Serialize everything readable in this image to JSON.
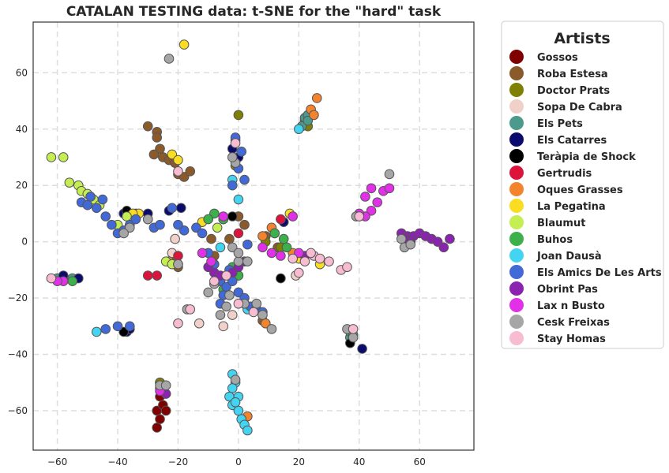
{
  "chart_data": {
    "type": "scatter",
    "title": "CATALAN TESTING data: t-SNE for the \"hard\" task",
    "xlabel": "",
    "ylabel": "",
    "xlim": [
      -68,
      78
    ],
    "ylim": [
      -74,
      78
    ],
    "xticks": [
      -60,
      -40,
      -20,
      0,
      20,
      40,
      60
    ],
    "yticks": [
      -60,
      -40,
      -20,
      0,
      20,
      40,
      60
    ],
    "grid": true,
    "legend": {
      "title": "Artists",
      "placement": "outside-right"
    },
    "series": [
      {
        "name": "Gossos",
        "color": "#800000",
        "points": [
          [
            -26,
            -55
          ],
          [
            -27,
            -60
          ],
          [
            -25,
            -58
          ],
          [
            -26,
            -63
          ],
          [
            -27,
            -66
          ],
          [
            -24,
            -60
          ],
          [
            -26,
            -50
          ],
          [
            -25,
            -52
          ]
        ]
      },
      {
        "name": "Roba Estesa",
        "color": "#8b5a2b",
        "points": [
          [
            -30,
            41
          ],
          [
            -27,
            39
          ],
          [
            -27,
            37
          ],
          [
            -26,
            33
          ],
          [
            -28,
            31
          ],
          [
            -25,
            30
          ],
          [
            -23,
            29
          ],
          [
            -21,
            28
          ],
          [
            -20,
            24
          ],
          [
            -18,
            23
          ],
          [
            -16,
            25
          ],
          [
            -9,
            1
          ],
          [
            -20,
            -9
          ],
          [
            -22,
            -7
          ],
          [
            -3,
            1
          ],
          [
            0,
            9
          ],
          [
            2,
            6
          ],
          [
            8,
            -28
          ],
          [
            9,
            2
          ],
          [
            13,
            -2
          ],
          [
            -8,
            -5
          ]
        ]
      },
      {
        "name": "Doctor Prats",
        "color": "#808000",
        "points": [
          [
            0,
            45
          ],
          [
            -1,
            27
          ],
          [
            22,
            43
          ],
          [
            23,
            41
          ],
          [
            9,
            0
          ],
          [
            14,
            -2
          ],
          [
            -26,
            -50
          ]
        ]
      },
      {
        "name": "Sopa De Cabra",
        "color": "#f0d0c8",
        "points": [
          [
            -21,
            1
          ],
          [
            -22,
            -4
          ],
          [
            -1,
            36
          ],
          [
            -2,
            -26
          ],
          [
            -13,
            -29
          ],
          [
            19,
            -12
          ],
          [
            -5,
            -30
          ]
        ]
      },
      {
        "name": "Els Pets",
        "color": "#4b9a8c",
        "points": [
          [
            -30,
            8
          ],
          [
            22,
            44
          ],
          [
            23,
            45
          ],
          [
            21,
            41
          ],
          [
            23,
            43
          ],
          [
            -60,
            -13
          ],
          [
            -55,
            -13
          ],
          [
            37,
            -34
          ]
        ]
      },
      {
        "name": "Els Catarres",
        "color": "#0b0b6e",
        "points": [
          [
            -58,
            -12
          ],
          [
            -53,
            -13
          ],
          [
            -38,
            10
          ],
          [
            -37,
            -32
          ],
          [
            -36,
            -31
          ],
          [
            -23,
            11
          ],
          [
            -19,
            12
          ],
          [
            -2,
            33
          ],
          [
            0,
            30
          ],
          [
            41,
            -38
          ],
          [
            15,
            7
          ],
          [
            -30,
            10
          ]
        ]
      },
      {
        "name": "Teràpia de Shock",
        "color": "#000000",
        "points": [
          [
            -37,
            11
          ],
          [
            -34,
            10
          ],
          [
            -38,
            -32
          ],
          [
            14,
            -13
          ],
          [
            -2,
            9
          ],
          [
            37,
            -36
          ]
        ]
      },
      {
        "name": "Gertrudis",
        "color": "#dc143c",
        "points": [
          [
            -30,
            -12
          ],
          [
            -27,
            -12
          ],
          [
            -20,
            -5
          ],
          [
            0,
            3
          ],
          [
            14,
            8
          ]
        ]
      },
      {
        "name": "Oques Grasses",
        "color": "#f4832e",
        "points": [
          [
            26,
            51
          ],
          [
            24,
            47
          ],
          [
            25,
            45
          ],
          [
            11,
            5
          ],
          [
            12,
            3
          ],
          [
            9,
            -29
          ],
          [
            3,
            -62
          ],
          [
            -23,
            -7
          ],
          [
            8,
            2
          ],
          [
            18,
            -4
          ]
        ]
      },
      {
        "name": "La Pegatina",
        "color": "#fadd20",
        "points": [
          [
            -18,
            70
          ],
          [
            -22,
            31
          ],
          [
            -20,
            29
          ],
          [
            17,
            10
          ],
          [
            -33,
            10
          ],
          [
            -35,
            10
          ],
          [
            -12,
            7
          ],
          [
            20,
            -6
          ],
          [
            27,
            -8
          ]
        ]
      },
      {
        "name": "Blaumut",
        "color": "#c4ee52",
        "points": [
          [
            -62,
            30
          ],
          [
            -58,
            30
          ],
          [
            -56,
            21
          ],
          [
            -53,
            20
          ],
          [
            -52,
            18
          ],
          [
            -50,
            17
          ],
          [
            -48,
            15
          ],
          [
            -40,
            6
          ],
          [
            -37,
            9
          ],
          [
            -24,
            -7
          ],
          [
            -22,
            -8
          ],
          [
            -7,
            5
          ],
          [
            -5,
            8
          ],
          [
            -46,
            13
          ]
        ]
      },
      {
        "name": "Buhos",
        "color": "#3cb04a",
        "points": [
          [
            -8,
            10
          ],
          [
            -5,
            8
          ],
          [
            -10,
            8
          ],
          [
            12,
            3
          ],
          [
            15,
            1
          ],
          [
            16,
            -2
          ],
          [
            -2,
            -9
          ],
          [
            0,
            -12
          ],
          [
            37,
            -32
          ],
          [
            38,
            -33
          ],
          [
            -55,
            -14
          ],
          [
            -5,
            -17
          ]
        ]
      },
      {
        "name": "Joan Dausà",
        "color": "#43d4f2",
        "points": [
          [
            -2,
            -47
          ],
          [
            -1,
            -50
          ],
          [
            -2,
            -52
          ],
          [
            -3,
            -55
          ],
          [
            -2,
            -58
          ],
          [
            0,
            -60
          ],
          [
            1,
            -63
          ],
          [
            2,
            -65
          ],
          [
            3,
            -67
          ],
          [
            0,
            -55
          ],
          [
            -1,
            -57
          ],
          [
            -47,
            -32
          ],
          [
            3,
            -24
          ],
          [
            -2,
            22
          ],
          [
            20,
            40
          ],
          [
            0,
            15
          ],
          [
            -6,
            -2
          ]
        ]
      },
      {
        "name": "Els Amics De Les Arts",
        "color": "#4169d8",
        "points": [
          [
            -52,
            14
          ],
          [
            -50,
            13
          ],
          [
            -45,
            15
          ],
          [
            -44,
            9
          ],
          [
            -42,
            6
          ],
          [
            -40,
            3
          ],
          [
            -38,
            4
          ],
          [
            -36,
            6
          ],
          [
            -34,
            8
          ],
          [
            -28,
            5
          ],
          [
            -26,
            6
          ],
          [
            -18,
            4
          ],
          [
            -14,
            5
          ],
          [
            -12,
            3
          ],
          [
            -10,
            -4
          ],
          [
            -8,
            -8
          ],
          [
            -6,
            -14
          ],
          [
            -5,
            -19
          ],
          [
            -6,
            -22
          ],
          [
            -4,
            -16
          ],
          [
            -2,
            -14
          ],
          [
            0,
            -18
          ],
          [
            2,
            -20
          ],
          [
            4,
            -23
          ],
          [
            6,
            -24
          ],
          [
            8,
            -25
          ],
          [
            -44,
            -31
          ],
          [
            -40,
            -30
          ],
          [
            -36,
            -30
          ],
          [
            0,
            26
          ],
          [
            2,
            22
          ],
          [
            -2,
            20
          ],
          [
            -1,
            37
          ],
          [
            1,
            32
          ],
          [
            -22,
            12
          ],
          [
            -20,
            6
          ],
          [
            -3,
            -10
          ],
          [
            3,
            -1
          ],
          [
            -47,
            12
          ],
          [
            -49,
            16
          ]
        ]
      },
      {
        "name": "Obrint Pas",
        "color": "#8b22b0",
        "points": [
          [
            54,
            3
          ],
          [
            56,
            2
          ],
          [
            58,
            2
          ],
          [
            60,
            3
          ],
          [
            62,
            2
          ],
          [
            64,
            1
          ],
          [
            66,
            0
          ],
          [
            68,
            -2
          ],
          [
            70,
            1
          ],
          [
            57,
            0
          ],
          [
            55,
            1
          ],
          [
            -8,
            -11
          ],
          [
            -6,
            -12
          ],
          [
            -10,
            -9
          ],
          [
            -26,
            -52
          ],
          [
            -24,
            -54
          ],
          [
            0,
            -9
          ],
          [
            -2,
            -11
          ],
          [
            2,
            -7
          ],
          [
            22,
            -5
          ]
        ]
      },
      {
        "name": "Lax n Busto",
        "color": "#e22fe8",
        "points": [
          [
            42,
            16
          ],
          [
            44,
            19
          ],
          [
            46,
            14
          ],
          [
            48,
            18
          ],
          [
            50,
            19
          ],
          [
            44,
            11
          ],
          [
            42,
            9
          ],
          [
            40,
            10
          ],
          [
            -12,
            -4
          ],
          [
            -9,
            -7
          ],
          [
            18,
            9
          ],
          [
            -26,
            -53
          ],
          [
            8,
            -2
          ],
          [
            11,
            -4
          ],
          [
            20,
            -4
          ],
          [
            -20,
            -8
          ],
          [
            14,
            -5
          ],
          [
            -5,
            9
          ],
          [
            -58,
            -14
          ],
          [
            -60,
            -14
          ]
        ]
      },
      {
        "name": "Cesk Freixas",
        "color": "#a6a6a6",
        "points": [
          [
            -23,
            65
          ],
          [
            50,
            24
          ],
          [
            -1,
            28
          ],
          [
            -2,
            30
          ],
          [
            54,
            1
          ],
          [
            55,
            -2
          ],
          [
            57,
            -1
          ],
          [
            36,
            -31
          ],
          [
            38,
            -34
          ],
          [
            -36,
            5
          ],
          [
            -38,
            3
          ],
          [
            -30,
            8
          ],
          [
            -20,
            -8
          ],
          [
            -4,
            -23
          ],
          [
            -6,
            -26
          ],
          [
            6,
            -22
          ],
          [
            8,
            -26
          ],
          [
            11,
            -31
          ],
          [
            -26,
            -51
          ],
          [
            -24,
            -51
          ],
          [
            -1,
            -49
          ],
          [
            0,
            -7
          ],
          [
            3,
            -7
          ],
          [
            -2,
            -2
          ],
          [
            0,
            -4
          ],
          [
            -8,
            -15
          ],
          [
            -10,
            -18
          ],
          [
            2,
            -22
          ],
          [
            -17,
            -24
          ],
          [
            39,
            9
          ],
          [
            -3,
            -19
          ]
        ]
      },
      {
        "name": "Stay Homas",
        "color": "#f7bcd2",
        "points": [
          [
            -20,
            25
          ],
          [
            -1,
            35
          ],
          [
            18,
            -6
          ],
          [
            20,
            -11
          ],
          [
            22,
            -7
          ],
          [
            25,
            -5
          ],
          [
            27,
            -6
          ],
          [
            30,
            -7
          ],
          [
            34,
            -10
          ],
          [
            36,
            -9
          ],
          [
            38,
            -31
          ],
          [
            40,
            9
          ],
          [
            -16,
            -24
          ],
          [
            -20,
            -29
          ],
          [
            5,
            -25
          ],
          [
            -62,
            -13
          ],
          [
            -8,
            -14
          ],
          [
            -4,
            -12
          ],
          [
            0,
            -22
          ],
          [
            24,
            -4
          ]
        ]
      }
    ]
  }
}
